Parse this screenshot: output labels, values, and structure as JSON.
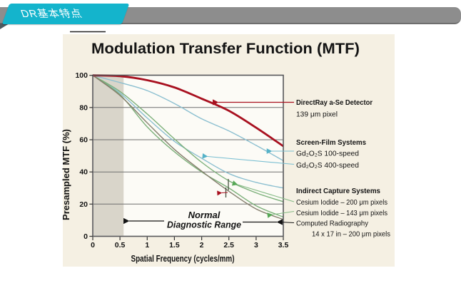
{
  "header": {
    "title": "DR基本特点",
    "banner_color": "#14b4cc",
    "bar_color": "#8d8d8d"
  },
  "chart_data": {
    "type": "line",
    "title": "Modulation Transfer Function (MTF)",
    "xlabel": "Spatial Frequency (cycles/mm)",
    "ylabel": "Presampled MTF (%)",
    "xlim": [
      0,
      3.5
    ],
    "ylim": [
      0,
      100
    ],
    "grid": true,
    "x": [
      0,
      0.5,
      1,
      1.5,
      2,
      2.5,
      3,
      3.5
    ],
    "x_tick_labels": [
      "0",
      "0.5",
      "1",
      "1.5",
      "2",
      "2.5",
      "3",
      "3.5"
    ],
    "y_tick_labels": [
      "0",
      "20",
      "40",
      "60",
      "80",
      "100"
    ],
    "shaded_band_x": [
      0,
      0.56
    ],
    "series": [
      {
        "name": "DirectRay a-Se Detector 139 μm pixel",
        "color": "#a8101f",
        "width": 2.8,
        "values": [
          100,
          99.5,
          97,
          92.5,
          85.5,
          78,
          67.5,
          56
        ]
      },
      {
        "name": "Gd₂O₂S 100-speed screen-film",
        "color": "#8bbfd0",
        "width": 1.4,
        "values": [
          100,
          95.5,
          90.5,
          82.5,
          73,
          65.5,
          56.5,
          47
        ]
      },
      {
        "name": "Gd₂O₂S 400-speed screen-film",
        "color": "#8bbfd0",
        "width": 1.4,
        "values": [
          100,
          89,
          73.5,
          59,
          48.5,
          39,
          33.5,
          30
        ]
      },
      {
        "name": "Cesium Iodide – 200 μm pixels",
        "color": "#7cb07a",
        "width": 1.4,
        "values": [
          100,
          90,
          76,
          60.5,
          46,
          34.5,
          27,
          21.5
        ]
      },
      {
        "name": "Cesium Iodide – 143 μm pixels",
        "color": "#7cb07a",
        "width": 1.4,
        "values": [
          100,
          88,
          68,
          52.5,
          40,
          30,
          19,
          12
        ]
      },
      {
        "name": "Computed Radiography 14 x 17 in – 200 μm pixels",
        "color": "#847e6c",
        "width": 1.4,
        "values": [
          100,
          87.5,
          70.5,
          54,
          40.5,
          28,
          17,
          10.5
        ]
      }
    ],
    "annotation": {
      "line1": "Normal",
      "line2": "Diagnostic Range"
    }
  },
  "legend": {
    "group1_title": "DirectRay a-Se Detector",
    "group1_item1": "139 μm pixel",
    "group2_title": "Screen-Film Systems",
    "group2_item1": "Gd₂O₂S 100-speed",
    "group2_item2": "Gd₂O₂S 400-speed",
    "group3_title": "Indirect Capture Systems",
    "group3_item1": "Cesium Iodide – 200 μm pixels",
    "group3_item2": "Cesium Iodide – 143 μm pixels",
    "group3_item3": "Computed Radiography",
    "group3_item4": "14 x 17 in – 200 μm pixels"
  }
}
